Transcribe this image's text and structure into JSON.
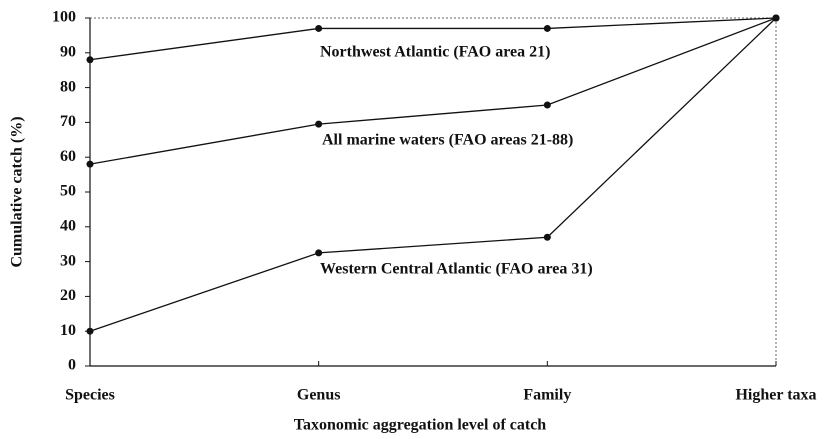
{
  "chart_data": {
    "type": "line",
    "x_label": "Taxonomic aggregation level of catch",
    "y_label": "Cumulative catch (%)",
    "categories": [
      "Species",
      "Genus",
      "Family",
      "Higher taxa"
    ],
    "series": [
      {
        "name": "Northwest Atlantic (FAO area 21)",
        "color": "#111111",
        "values": [
          88,
          97,
          97,
          100
        ]
      },
      {
        "name": "All marine waters (FAO areas 21-88)",
        "color": "#111111",
        "values": [
          58,
          69.5,
          75,
          100
        ]
      },
      {
        "name": "Western Central Atlantic (FAO area 31)",
        "color": "#111111",
        "values": [
          10,
          32.5,
          37,
          100
        ]
      }
    ],
    "ylim": [
      0,
      100
    ],
    "yticks": [
      0,
      10,
      20,
      30,
      40,
      50,
      60,
      70,
      80,
      90,
      100
    ]
  }
}
